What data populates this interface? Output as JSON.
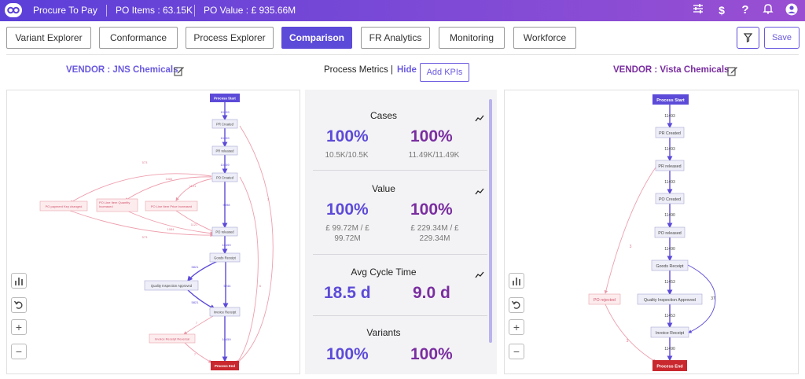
{
  "app": {
    "title": "Procure To Pay",
    "po_items": "PO Items : 63.15K",
    "po_value": "PO Value : £ 935.66M"
  },
  "topbar_icons": [
    "sliders-icon",
    "dollar-icon",
    "help-icon",
    "bell-icon",
    "user-icon"
  ],
  "tabs": [
    {
      "label": "Variant Explorer",
      "active": false
    },
    {
      "label": "Conformance",
      "active": false
    },
    {
      "label": "Process Explorer",
      "active": false
    },
    {
      "label": "Comparison",
      "active": true
    },
    {
      "label": "FR Analytics",
      "active": false
    },
    {
      "label": "Monitoring",
      "active": false
    },
    {
      "label": "Workforce",
      "active": false
    }
  ],
  "toolbar": {
    "save_label": "Save"
  },
  "left_vendor": {
    "label": "VENDOR : JNS Chemicals",
    "color": "#6a5ae0"
  },
  "right_vendor": {
    "label": "VENDOR : Vista Chemicals",
    "color": "#7a2ea0"
  },
  "metrics": {
    "title": "Process Metrics",
    "separator": "|",
    "hide_label": "Hide",
    "add_kpis_label": "Add KPIs",
    "cards": [
      {
        "title": "Cases",
        "left_value": "100%",
        "left_sub": "10.5K/10.5K",
        "right_value": "100%",
        "right_sub": "11.49K/11.49K"
      },
      {
        "title": "Value",
        "left_value": "100%",
        "left_sub": "£ 99.72M / £ 99.72M",
        "right_value": "100%",
        "right_sub": "£ 229.34M / £ 229.34M"
      },
      {
        "title": "Avg Cycle Time",
        "left_value": "18.5 d",
        "left_sub": "",
        "right_value": "9.0 d",
        "right_sub": ""
      },
      {
        "title": "Variants",
        "left_value": "100%",
        "left_sub": "",
        "right_value": "100%",
        "right_sub": ""
      }
    ]
  },
  "left_map": {
    "nodes": {
      "start": "Process Start",
      "pr_created": "PR Created",
      "pr_released": "PR released",
      "po_created": "PO Created",
      "po_payment_changed": "PO payment Key changed",
      "po_qty_increased": "PO Line Item Quantity Increased",
      "po_price_increased": "PO Line Item Price Increased",
      "po_released": "PO released",
      "goods_receipt": "Goods Receipt",
      "quality_approved": "Quality Inspection Approved",
      "invoice_receipt": "Invoice Receipt",
      "invoice_reversal": "Invoice Receipt Reversal",
      "end": "Process End"
    },
    "edge_labels": {
      "start_pr": "10459",
      "pr_prrel": "10459",
      "prrel_po": "10459",
      "po_porel": "9898",
      "porel_gr": "10459",
      "gr_qa": "5821",
      "gr_inv": "5244",
      "qa_inv": "5821",
      "inv_end": "10459",
      "po_pay": "573",
      "po_qty": "1084",
      "po_price": "1121",
      "qty_porel": "1084",
      "price_porel": "1121",
      "pay_porel": "573",
      "inv_rev": "7",
      "rev_end": "7",
      "pr_end": "3",
      "po_end": "6"
    }
  },
  "right_map": {
    "nodes": {
      "start": "Process Start",
      "pr_created": "PR Created",
      "pr_released": "PR released",
      "po_created": "PO Created",
      "po_released": "PO released",
      "goods_receipt": "Goods Receipt",
      "po_rejected": "PO rejected",
      "quality_approved": "Quality Inspection Approved",
      "invoice_receipt": "Invoice Receipt",
      "end": "Process End"
    },
    "edge_labels": {
      "e1": "11493",
      "e2": "11493",
      "e3": "11493",
      "e4": "11490",
      "e5": "11490",
      "e6": "11453",
      "e7": "11453",
      "e8": "11490",
      "rej_in": "3",
      "rej_out": "3",
      "gr_inv": "37"
    }
  },
  "side_controls": [
    "chart-icon",
    "reset-icon",
    "zoom-in-icon",
    "zoom-out-icon"
  ]
}
